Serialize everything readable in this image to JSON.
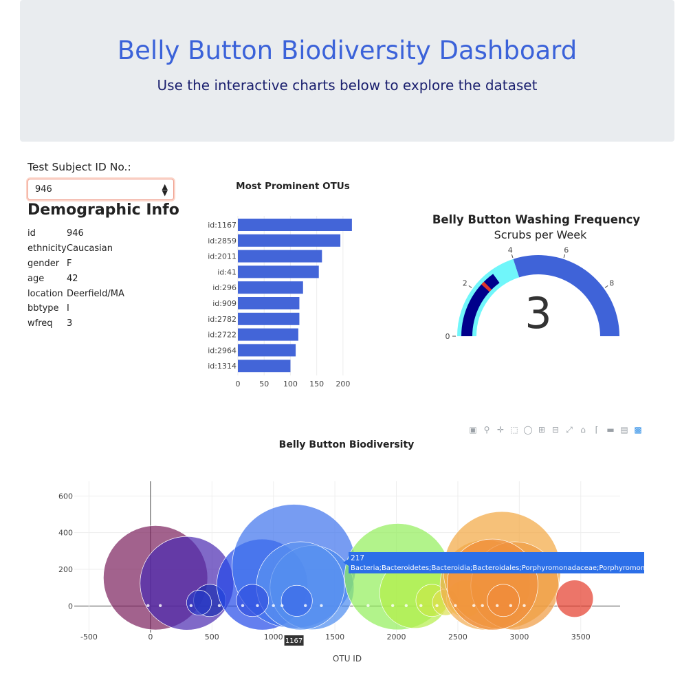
{
  "header": {
    "title": "Belly Button Biodiversity Dashboard",
    "subtitle": "Use the interactive charts below to explore the dataset"
  },
  "selector": {
    "label": "Test Subject ID No.:",
    "selected": "946"
  },
  "demographics": {
    "title": "Demographic Info",
    "rows": [
      {
        "key": "id",
        "value": "946"
      },
      {
        "key": "ethnicity",
        "value": "Caucasian"
      },
      {
        "key": "gender",
        "value": "F"
      },
      {
        "key": "age",
        "value": "42"
      },
      {
        "key": "location",
        "value": "Deerfield/MA"
      },
      {
        "key": "bbtype",
        "value": "I"
      },
      {
        "key": "wfreq",
        "value": "3"
      }
    ]
  },
  "colors": {
    "bar": "#4365d8",
    "gauge_fill": "#3f63d8",
    "gauge_light": "#70f6fa",
    "gauge_dark": "#00008b",
    "needle": "#e0352b",
    "title_blue": "#3b62d9"
  },
  "chart_data": [
    {
      "type": "bar",
      "orientation": "horizontal",
      "title": "Most Prominent OTUs",
      "categories": [
        "id:1167",
        "id:2859",
        "id:2011",
        "id:41",
        "id:296",
        "id:909",
        "id:2782",
        "id:2722",
        "id:2964",
        "id:1314"
      ],
      "values": [
        217,
        195,
        160,
        154,
        124,
        117,
        117,
        115,
        110,
        100
      ],
      "xticks": [
        0,
        50,
        100,
        150,
        200
      ],
      "xlim": [
        0,
        225
      ]
    },
    {
      "type": "gauge",
      "title": "Belly Button Washing Frequency",
      "subtitle": "Scrubs per Week",
      "value": 3,
      "range": [
        0,
        10
      ],
      "ticks": [
        0,
        2,
        4,
        6,
        8
      ],
      "steps": [
        {
          "range": [
            0,
            2
          ],
          "color": "light"
        },
        {
          "range": [
            2,
            4
          ],
          "color": "light"
        },
        {
          "range": [
            4,
            10
          ],
          "color": "fill"
        }
      ]
    },
    {
      "type": "scatter",
      "title": "Belly Button Biodiversity",
      "xlabel": "OTU ID",
      "ylabel": "",
      "xticks": [
        -500,
        0,
        500,
        1000,
        1500,
        2000,
        2500,
        3000,
        3500
      ],
      "yticks": [
        0,
        200,
        400,
        600
      ],
      "xlim": [
        -620,
        3820
      ],
      "ylim": [
        -145,
        680
      ],
      "grid": true,
      "points": [
        {
          "x": 41,
          "y": 154,
          "color": "#7a1f5c"
        },
        {
          "x": 296,
          "y": 124,
          "color": "#4a2ab0"
        },
        {
          "x": 482,
          "y": 30,
          "color": "#1b2fb0"
        },
        {
          "x": 395,
          "y": 18,
          "color": "#2a3ac8"
        },
        {
          "x": 909,
          "y": 117,
          "color": "#2248e8"
        },
        {
          "x": 1167,
          "y": 217,
          "color": "#3d72ec"
        },
        {
          "x": 1314,
          "y": 100,
          "color": "#4a8af0"
        },
        {
          "x": 1220,
          "y": 110,
          "color": "#5a92f0"
        },
        {
          "x": 830,
          "y": 30,
          "color": "#3050e0"
        },
        {
          "x": 1190,
          "y": 28,
          "color": "#3a6ae8"
        },
        {
          "x": 2011,
          "y": 160,
          "color": "#92ee5a"
        },
        {
          "x": 2150,
          "y": 70,
          "color": "#b4ee48"
        },
        {
          "x": 2290,
          "y": 30,
          "color": "#c8e84a"
        },
        {
          "x": 2400,
          "y": 20,
          "color": "#dce050"
        },
        {
          "x": 2560,
          "y": 40,
          "color": "#f6d748"
        },
        {
          "x": 2722,
          "y": 115,
          "color": "#f2ab50"
        },
        {
          "x": 2859,
          "y": 195,
          "color": "#f2a640"
        },
        {
          "x": 2964,
          "y": 110,
          "color": "#f09a40"
        },
        {
          "x": 2782,
          "y": 117,
          "color": "#f08d3a"
        },
        {
          "x": 2870,
          "y": 30,
          "color": "#f08a3a"
        },
        {
          "x": 3450,
          "y": 40,
          "color": "#e43b2a"
        }
      ],
      "tooltip": {
        "value": "217",
        "label": "Bacteria;Bacteroidetes;Bacteroidia;Bacteroidales;Porphyromonadaceae;Porphyromonas",
        "x_label": "1167"
      }
    }
  ]
}
